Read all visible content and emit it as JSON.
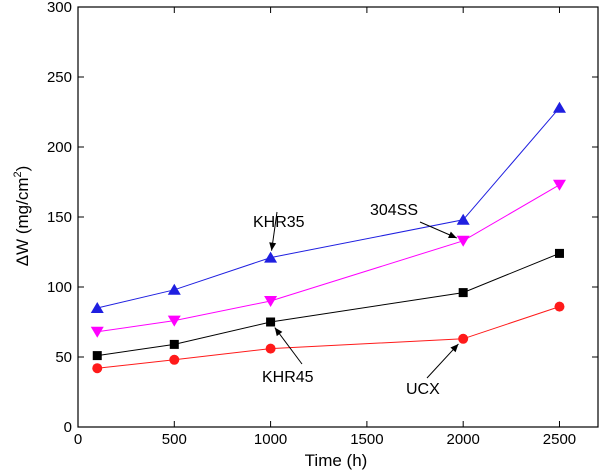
{
  "chart_data": {
    "type": "line",
    "title": "",
    "xlabel": "Time (h)",
    "ylabel_parts": {
      "main": "ΔW (mg/cm",
      "sup": "2",
      "end": ")"
    },
    "xlim": [
      0,
      2700
    ],
    "ylim": [
      0,
      300
    ],
    "xticks": [
      0,
      500,
      1000,
      1500,
      2000,
      2500
    ],
    "yticks": [
      0,
      50,
      100,
      150,
      200,
      250,
      300
    ],
    "grid": false,
    "x": [
      100,
      500,
      1000,
      2000,
      2500
    ],
    "series": [
      {
        "name": "KHR35",
        "marker": "triangle-up",
        "color": "#1f1fe0",
        "values": [
          85,
          98,
          121,
          148,
          228
        ]
      },
      {
        "name": "304SS",
        "marker": "triangle-down",
        "color": "#ff00ff",
        "values": [
          68,
          76,
          90,
          133,
          173
        ]
      },
      {
        "name": "KHR45",
        "marker": "square",
        "color": "#000000",
        "values": [
          51,
          59,
          75,
          96,
          124
        ]
      },
      {
        "name": "UCX",
        "marker": "circle",
        "color": "#ff1a1a",
        "values": [
          42,
          48,
          56,
          63,
          86
        ]
      }
    ],
    "annotations": [
      {
        "text": "KHR35",
        "series": "KHR35"
      },
      {
        "text": "304SS",
        "series": "304SS"
      },
      {
        "text": "KHR45",
        "series": "KHR45"
      },
      {
        "text": "UCX",
        "series": "UCX"
      }
    ]
  }
}
